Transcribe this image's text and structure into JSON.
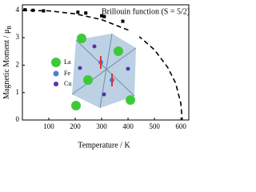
{
  "chart_data": {
    "type": "scatter",
    "xlabel": "Temperature / K",
    "ylabel": "Magnetic Moment / μ",
    "ylabel_sub": "B",
    "annotation": "Brillouin function (S = 5/2)",
    "inset_legend": [
      "La",
      "Fe",
      "Cu"
    ],
    "xlim": [
      0,
      630
    ],
    "ylim": [
      0,
      4.2
    ],
    "xticks": [
      100,
      200,
      300,
      400,
      500,
      600
    ],
    "yticks": [
      0,
      1,
      2,
      3,
      4
    ],
    "series": [
      {
        "kind": "points",
        "color": "#000000",
        "x": [
          10,
          40,
          80,
          210,
          240,
          300,
          310,
          380
        ],
        "values": [
          4.02,
          4.0,
          3.98,
          3.93,
          3.9,
          3.8,
          3.77,
          3.6
        ]
      },
      {
        "kind": "dashed",
        "color": "#000000",
        "x": [
          0,
          100,
          200,
          300,
          400,
          450,
          500,
          550,
          580,
          600,
          605
        ],
        "values": [
          4.0,
          3.98,
          3.87,
          3.66,
          3.28,
          2.98,
          2.56,
          1.92,
          1.35,
          0.6,
          0
        ]
      }
    ]
  }
}
